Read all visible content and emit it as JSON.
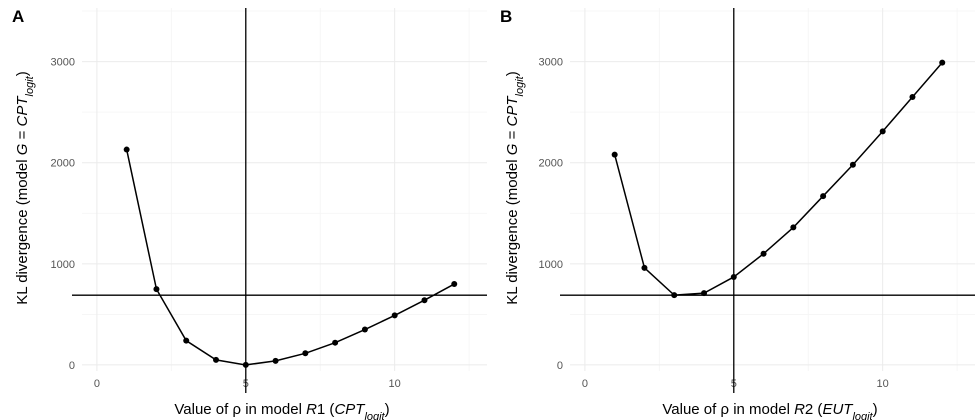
{
  "chart_data": [
    {
      "panel": "A",
      "type": "line",
      "xlabel_parts": [
        "Value of ",
        "ρ",
        " in model ",
        "R",
        "1 (",
        "CPT",
        "logit",
        ")"
      ],
      "ylabel_parts": [
        "KL divergence (model ",
        "G",
        " = ",
        "CPT",
        "logit",
        ")"
      ],
      "xlim": [
        -0.5,
        13.1
      ],
      "ylim": [
        -60,
        3530
      ],
      "xticks": [
        0,
        5,
        10
      ],
      "yticks": [
        0,
        1000,
        2000,
        3000
      ],
      "grid": true,
      "vline": 5,
      "hline": 690,
      "series": [
        {
          "x": [
            1,
            2,
            3,
            4,
            5,
            6,
            7,
            8,
            9,
            10,
            11,
            12
          ],
          "y": [
            2130,
            750,
            240,
            50,
            0,
            40,
            115,
            220,
            350,
            490,
            640,
            800
          ]
        }
      ]
    },
    {
      "panel": "B",
      "type": "line",
      "xlabel_parts": [
        "Value of ",
        "ρ",
        " in model ",
        "R",
        "2 (",
        "EUT",
        "logit",
        ")"
      ],
      "ylabel_parts": [
        "KL divergence (model ",
        "G",
        " = ",
        "CPT",
        "logit",
        ")"
      ],
      "xlim": [
        -0.5,
        13.1
      ],
      "ylim": [
        -60,
        3530
      ],
      "xticks": [
        0,
        5,
        10
      ],
      "yticks": [
        0,
        1000,
        2000,
        3000
      ],
      "grid": true,
      "vline": 5,
      "hline": 690,
      "series": [
        {
          "x": [
            1,
            2,
            3,
            4,
            5,
            6,
            7,
            8,
            9,
            10,
            11,
            12
          ],
          "y": [
            2080,
            960,
            690,
            710,
            870,
            1100,
            1360,
            1670,
            1980,
            2310,
            2650,
            2990
          ]
        }
      ]
    }
  ]
}
